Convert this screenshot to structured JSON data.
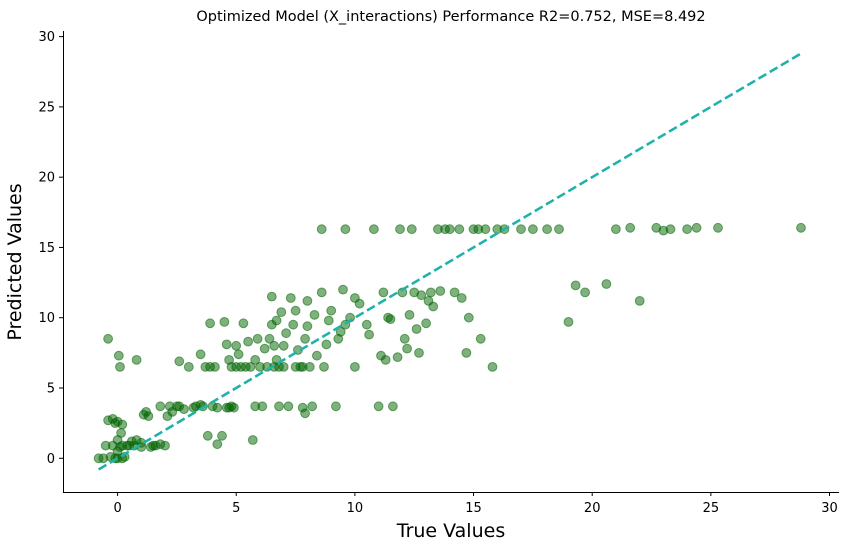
{
  "chart_data": {
    "type": "scatter",
    "title": "Optimized Model (X_interactions) Performance R2=0.752, MSE=8.492",
    "xlabel": "True Values",
    "ylabel": "Predicted Values",
    "xlim": [
      -2.3,
      30.4
    ],
    "ylim": [
      -2.4,
      30.4
    ],
    "x_ticks": [
      "0",
      "5",
      "10",
      "15",
      "20",
      "25",
      "30"
    ],
    "y_ticks": [
      "0",
      "5",
      "10",
      "15",
      "20",
      "25",
      "30"
    ],
    "grid": false,
    "point_color": "#006400",
    "line_color": "#20b2aa",
    "reference_line": {
      "name": "y = x",
      "from": [
        -0.8,
        -0.8
      ],
      "to": [
        28.8,
        28.8
      ],
      "style": "dashed"
    },
    "points": [
      [
        -0.8,
        0.0
      ],
      [
        -0.6,
        0.0
      ],
      [
        -0.5,
        0.9
      ],
      [
        -0.4,
        2.7
      ],
      [
        -0.4,
        8.5
      ],
      [
        -0.3,
        0.1
      ],
      [
        -0.2,
        2.8
      ],
      [
        -0.2,
        0.9
      ],
      [
        -0.1,
        0.0
      ],
      [
        -0.1,
        2.5
      ],
      [
        0.0,
        0.5
      ],
      [
        0.0,
        1.3
      ],
      [
        0.0,
        2.6
      ],
      [
        0.0,
        0.0
      ],
      [
        0.05,
        7.3
      ],
      [
        0.1,
        6.5
      ],
      [
        0.1,
        0.8
      ],
      [
        0.15,
        1.8
      ],
      [
        0.2,
        0.9
      ],
      [
        0.2,
        0.0
      ],
      [
        0.2,
        2.4
      ],
      [
        0.3,
        0.1
      ],
      [
        0.4,
        0.9
      ],
      [
        0.5,
        0.9
      ],
      [
        0.6,
        1.2
      ],
      [
        0.7,
        0.9
      ],
      [
        0.8,
        1.3
      ],
      [
        0.8,
        7.0
      ],
      [
        1.0,
        1.1
      ],
      [
        1.0,
        0.8
      ],
      [
        1.1,
        3.1
      ],
      [
        1.2,
        3.3
      ],
      [
        1.3,
        3.0
      ],
      [
        1.4,
        0.8
      ],
      [
        1.5,
        0.9
      ],
      [
        1.6,
        0.9
      ],
      [
        1.8,
        1.0
      ],
      [
        2.0,
        0.9
      ],
      [
        2.1,
        3.0
      ],
      [
        2.2,
        3.7
      ],
      [
        2.3,
        3.3
      ],
      [
        2.5,
        3.7
      ],
      [
        2.6,
        3.7
      ],
      [
        2.6,
        6.9
      ],
      [
        2.8,
        3.5
      ],
      [
        3.0,
        6.5
      ],
      [
        3.2,
        3.6
      ],
      [
        3.3,
        3.7
      ],
      [
        3.5,
        3.8
      ],
      [
        3.5,
        7.4
      ],
      [
        3.6,
        3.7
      ],
      [
        3.7,
        6.5
      ],
      [
        3.8,
        1.6
      ],
      [
        3.9,
        9.6
      ],
      [
        3.9,
        6.5
      ],
      [
        4.0,
        3.7
      ],
      [
        4.1,
        6.5
      ],
      [
        4.2,
        1.0
      ],
      [
        4.2,
        3.6
      ],
      [
        4.4,
        1.6
      ],
      [
        4.5,
        9.7
      ],
      [
        4.6,
        8.1
      ],
      [
        4.7,
        3.6
      ],
      [
        4.7,
        7.0
      ],
      [
        4.8,
        6.5
      ],
      [
        4.8,
        3.7
      ],
      [
        4.9,
        3.6
      ],
      [
        5.0,
        6.5
      ],
      [
        5.0,
        8.0
      ],
      [
        5.1,
        7.4
      ],
      [
        5.2,
        6.5
      ],
      [
        5.3,
        9.6
      ],
      [
        5.4,
        6.5
      ],
      [
        5.5,
        8.3
      ],
      [
        5.6,
        6.5
      ],
      [
        5.7,
        1.3
      ],
      [
        5.8,
        7.0
      ],
      [
        5.8,
        3.7
      ],
      [
        5.9,
        8.5
      ],
      [
        6.0,
        6.5
      ],
      [
        6.1,
        3.7
      ],
      [
        6.2,
        7.8
      ],
      [
        6.3,
        6.5
      ],
      [
        6.4,
        8.5
      ],
      [
        6.5,
        9.5
      ],
      [
        6.5,
        11.5
      ],
      [
        6.6,
        8.0
      ],
      [
        6.6,
        6.5
      ],
      [
        6.7,
        7.0
      ],
      [
        6.7,
        9.8
      ],
      [
        6.8,
        6.5
      ],
      [
        6.8,
        3.7
      ],
      [
        6.9,
        10.4
      ],
      [
        7.0,
        8.0
      ],
      [
        7.0,
        6.5
      ],
      [
        7.1,
        8.9
      ],
      [
        7.2,
        3.7
      ],
      [
        7.3,
        11.4
      ],
      [
        7.4,
        9.5
      ],
      [
        7.5,
        6.5
      ],
      [
        7.5,
        10.5
      ],
      [
        7.6,
        7.7
      ],
      [
        7.7,
        6.5
      ],
      [
        7.8,
        6.5
      ],
      [
        7.8,
        3.6
      ],
      [
        7.9,
        3.2
      ],
      [
        7.9,
        8.5
      ],
      [
        8.0,
        9.4
      ],
      [
        8.0,
        11.2
      ],
      [
        8.1,
        6.5
      ],
      [
        8.2,
        3.7
      ],
      [
        8.3,
        10.2
      ],
      [
        8.4,
        7.3
      ],
      [
        8.6,
        16.3
      ],
      [
        8.6,
        11.8
      ],
      [
        8.7,
        6.5
      ],
      [
        8.8,
        8.1
      ],
      [
        8.9,
        9.8
      ],
      [
        9.0,
        10.5
      ],
      [
        9.2,
        3.7
      ],
      [
        9.3,
        8.5
      ],
      [
        9.4,
        9.0
      ],
      [
        9.5,
        12.0
      ],
      [
        9.6,
        16.3
      ],
      [
        9.6,
        9.5
      ],
      [
        9.8,
        10.0
      ],
      [
        10.0,
        11.4
      ],
      [
        10.2,
        11.0
      ],
      [
        10.5,
        9.5
      ],
      [
        10.6,
        8.8
      ],
      [
        10.8,
        16.3
      ],
      [
        11.0,
        3.7
      ],
      [
        11.1,
        7.3
      ],
      [
        11.2,
        11.8
      ],
      [
        11.3,
        7.0
      ],
      [
        11.4,
        10.0
      ],
      [
        11.5,
        9.9
      ],
      [
        11.8,
        7.2
      ],
      [
        11.9,
        16.3
      ],
      [
        12.0,
        11.8
      ],
      [
        12.1,
        8.5
      ],
      [
        12.2,
        7.8
      ],
      [
        12.3,
        10.2
      ],
      [
        12.4,
        16.3
      ],
      [
        12.5,
        11.8
      ],
      [
        12.6,
        9.2
      ],
      [
        12.7,
        7.5
      ],
      [
        12.8,
        11.6
      ],
      [
        13.0,
        9.6
      ],
      [
        13.1,
        11.2
      ],
      [
        13.2,
        11.8
      ],
      [
        13.3,
        10.8
      ],
      [
        13.5,
        16.3
      ],
      [
        13.6,
        11.9
      ],
      [
        13.8,
        16.3
      ],
      [
        14.0,
        16.3
      ],
      [
        14.2,
        11.8
      ],
      [
        14.4,
        16.3
      ],
      [
        14.5,
        11.4
      ],
      [
        14.7,
        7.5
      ],
      [
        14.8,
        10.0
      ],
      [
        15.0,
        16.3
      ],
      [
        15.2,
        16.3
      ],
      [
        15.3,
        8.5
      ],
      [
        15.5,
        16.3
      ],
      [
        15.8,
        6.5
      ],
      [
        16.0,
        16.3
      ],
      [
        16.3,
        16.3
      ],
      [
        17.0,
        16.3
      ],
      [
        17.5,
        16.3
      ],
      [
        18.1,
        16.3
      ],
      [
        18.6,
        16.3
      ],
      [
        19.0,
        9.7
      ],
      [
        19.3,
        12.3
      ],
      [
        19.7,
        11.8
      ],
      [
        20.6,
        12.4
      ],
      [
        21.0,
        16.3
      ],
      [
        21.6,
        16.4
      ],
      [
        22.0,
        11.2
      ],
      [
        22.7,
        16.4
      ],
      [
        23.0,
        16.2
      ],
      [
        23.3,
        16.3
      ],
      [
        24.0,
        16.3
      ],
      [
        24.4,
        16.4
      ],
      [
        25.3,
        16.4
      ],
      [
        28.8,
        16.4
      ],
      [
        1.8,
        3.7
      ],
      [
        4.6,
        3.6
      ],
      [
        11.6,
        3.7
      ],
      [
        10.0,
        6.5
      ]
    ]
  }
}
